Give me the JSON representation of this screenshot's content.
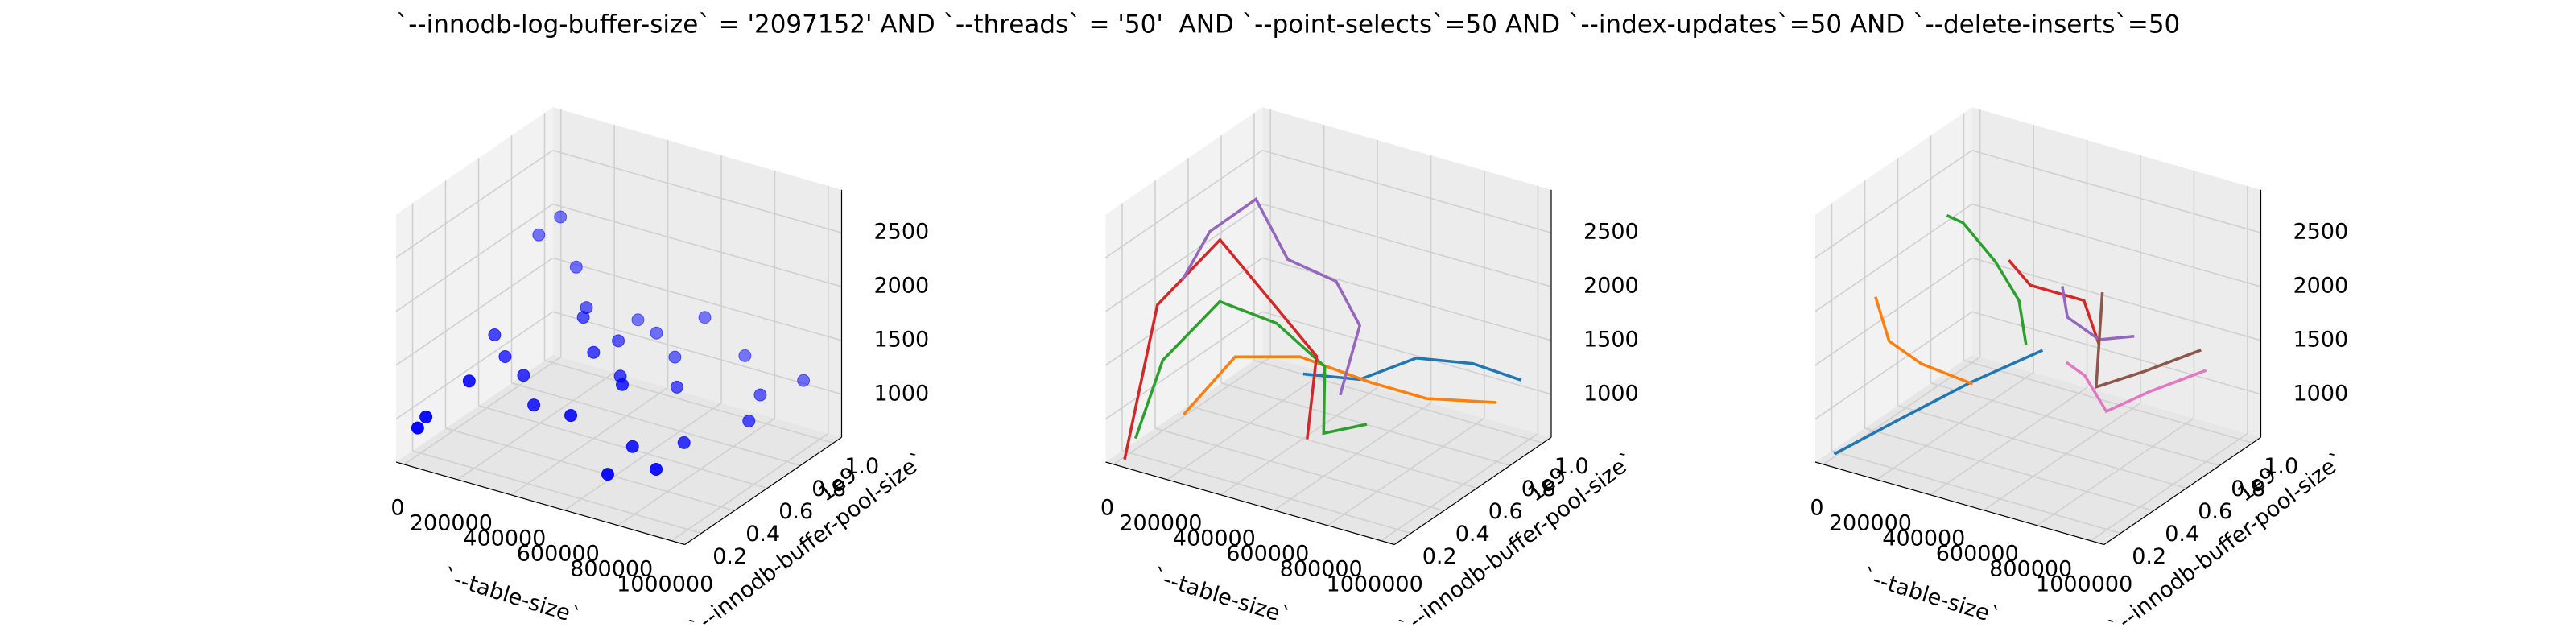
{
  "title": "`--innodb-log-buffer-size` = '2097152' AND `--threads` = '50'  AND `--point-selects`=50 AND `--index-updates`=50 AND `--delete-inserts`=50",
  "chart_data": [
    {
      "type": "scatter3d",
      "xlabel": "`--table-size`",
      "ylabel": "`--innodb-buffer-pool-size`",
      "y_offset_label": "1e9",
      "color": "#0000ff",
      "xlim": [
        -30000,
        1050000
      ],
      "ylim": [
        0.1,
        1.05
      ],
      "zlim": [
        600,
        2900
      ],
      "xticks": [
        0,
        200000,
        400000,
        600000,
        800000,
        {
          "value": 1000000,
          "label": "1000000"
        }
      ],
      "yticks": [
        0.2,
        0.4,
        0.6,
        0.8,
        {
          "value": 1.0,
          "label": "1.0"
        }
      ],
      "zticks": [
        1000,
        1500,
        2000,
        2500
      ],
      "x": [
        20000,
        30000,
        10000,
        60000,
        150000,
        20000,
        250000,
        300000,
        350000,
        120000,
        200000,
        400000,
        450000,
        500000,
        550000,
        600000,
        650000,
        700000,
        750000,
        800000,
        900000,
        950000,
        1000000,
        300000,
        500000,
        700000,
        100000,
        850000,
        400000,
        600000
      ],
      "y": [
        0.15,
        0.6,
        0.9,
        0.95,
        0.9,
        0.2,
        0.8,
        0.7,
        0.95,
        0.3,
        0.5,
        0.75,
        0.9,
        0.6,
        0.85,
        0.45,
        0.7,
        0.35,
        0.95,
        0.5,
        0.8,
        0.65,
        0.9,
        0.4,
        0.3,
        0.2,
        0.55,
        0.25,
        0.6,
        0.95
      ],
      "z": [
        900,
        1300,
        1900,
        2050,
        1700,
        950,
        1500,
        1550,
        1300,
        1250,
        1150,
        1350,
        1300,
        1250,
        1200,
        1400,
        1150,
        1000,
        1250,
        950,
        1150,
        1100,
        1250,
        1050,
        1200,
        900,
        1200,
        1000,
        1400,
        1500
      ]
    },
    {
      "type": "line3d",
      "xlabel": "`--table-size`",
      "ylabel": "`--innodb-buffer-pool-size`",
      "y_offset_label": "1e9",
      "xlim": [
        -30000,
        1050000
      ],
      "ylim": [
        0.1,
        1.05
      ],
      "zlim": [
        600,
        2900
      ],
      "xticks": [
        0,
        200000,
        400000,
        600000,
        800000,
        {
          "value": 1000000,
          "label": "1000000"
        }
      ],
      "yticks": [
        0.2,
        0.4,
        0.6,
        0.8,
        {
          "value": 1.0,
          "label": "1.0"
        }
      ],
      "zticks": [
        1000,
        1500,
        2000,
        2500
      ],
      "series": [
        {
          "color": "#1f77b4",
          "x": [
            400000,
            550000,
            700000,
            850000,
            1000000
          ],
          "y": [
            0.6,
            0.7,
            0.8,
            0.9,
            0.95
          ],
          "z": [
            1200,
            1150,
            1350,
            1300,
            1200
          ]
        },
        {
          "color": "#ff7f0e",
          "x": [
            200000,
            300000,
            450000,
            650000,
            800000,
            1000000
          ],
          "y": [
            0.2,
            0.35,
            0.5,
            0.6,
            0.7,
            0.8
          ],
          "z": [
            1100,
            1550,
            1500,
            1300,
            1150,
            1150
          ]
        },
        {
          "color": "#2ca02c",
          "x": [
            20000,
            60000,
            150000,
            300000,
            450000,
            600000,
            700000
          ],
          "y": [
            0.2,
            0.3,
            0.5,
            0.6,
            0.65,
            0.4,
            0.5
          ],
          "z": [
            750,
            1400,
            1800,
            1600,
            1250,
            1000,
            1050
          ]
        },
        {
          "color": "#d62728",
          "x": [
            10000,
            40000,
            120000,
            300000,
            450000,
            600000
          ],
          "y": [
            0.15,
            0.3,
            0.55,
            0.65,
            0.6,
            0.3
          ],
          "z": [
            600,
            1900,
            2300,
            1600,
            1400,
            1050
          ]
        },
        {
          "color": "#9467bd",
          "x": [
            10000,
            20000,
            100000,
            250000,
            400000,
            550000,
            600000
          ],
          "y": [
            0.5,
            0.65,
            0.8,
            0.75,
            0.8,
            0.7,
            0.5
          ],
          "z": [
            1900,
            2200,
            2400,
            2000,
            1850,
            1650,
            1250
          ]
        }
      ]
    },
    {
      "type": "line3d",
      "xlabel": "`--table-size`",
      "ylabel": "`--innodb-buffer-pool-size`",
      "y_offset_label": "1e9",
      "xlim": [
        -30000,
        1050000
      ],
      "ylim": [
        0.1,
        1.05
      ],
      "zlim": [
        600,
        2900
      ],
      "xticks": [
        0,
        200000,
        400000,
        600000,
        800000,
        {
          "value": 1000000,
          "label": "1000000"
        }
      ],
      "yticks": [
        0.2,
        0.4,
        0.6,
        0.8,
        {
          "value": 1.0,
          "label": "1.0"
        }
      ],
      "zticks": [
        1000,
        1500,
        2000,
        2500
      ],
      "series": [
        {
          "color": "#1f77b4",
          "x": [
            10000,
            150000,
            300000,
            450000
          ],
          "y": [
            0.15,
            0.3,
            0.5,
            0.7
          ],
          "z": [
            650,
            900,
            1150,
            1350
          ]
        },
        {
          "color": "#ff7f0e",
          "x": [
            10000,
            30000,
            120000,
            250000
          ],
          "y": [
            0.4,
            0.45,
            0.5,
            0.6
          ],
          "z": [
            1850,
            1400,
            1200,
            1000
          ]
        },
        {
          "color": "#2ca02c",
          "x": [
            30000,
            60000,
            150000,
            300000,
            450000
          ],
          "y": [
            0.8,
            0.85,
            0.9,
            0.8,
            0.6
          ],
          "z": [
            2200,
            2100,
            1750,
            1600,
            1500
          ]
        },
        {
          "color": "#d62728",
          "x": [
            200000,
            250000,
            450000,
            600000
          ],
          "y": [
            0.9,
            0.95,
            0.95,
            0.8
          ],
          "z": [
            1800,
            1550,
            1550,
            1400
          ]
        },
        {
          "color": "#9467bd",
          "x": [
            400000,
            450000,
            600000,
            700000
          ],
          "y": [
            0.9,
            0.85,
            0.8,
            0.85
          ],
          "z": [
            1700,
            1500,
            1450,
            1500
          ]
        },
        {
          "color": "#8c564b",
          "x": [
            550000,
            650000,
            800000,
            950000
          ],
          "y": [
            0.9,
            0.7,
            0.75,
            0.85
          ],
          "z": [
            1750,
            1150,
            1350,
            1550
          ]
        },
        {
          "color": "#e377c2",
          "x": [
            600000,
            700000,
            750000,
            850000,
            1000000
          ],
          "y": [
            0.6,
            0.55,
            0.6,
            0.7,
            0.8
          ],
          "z": [
            1450,
            1450,
            1100,
            1250,
            1450
          ]
        }
      ]
    }
  ]
}
